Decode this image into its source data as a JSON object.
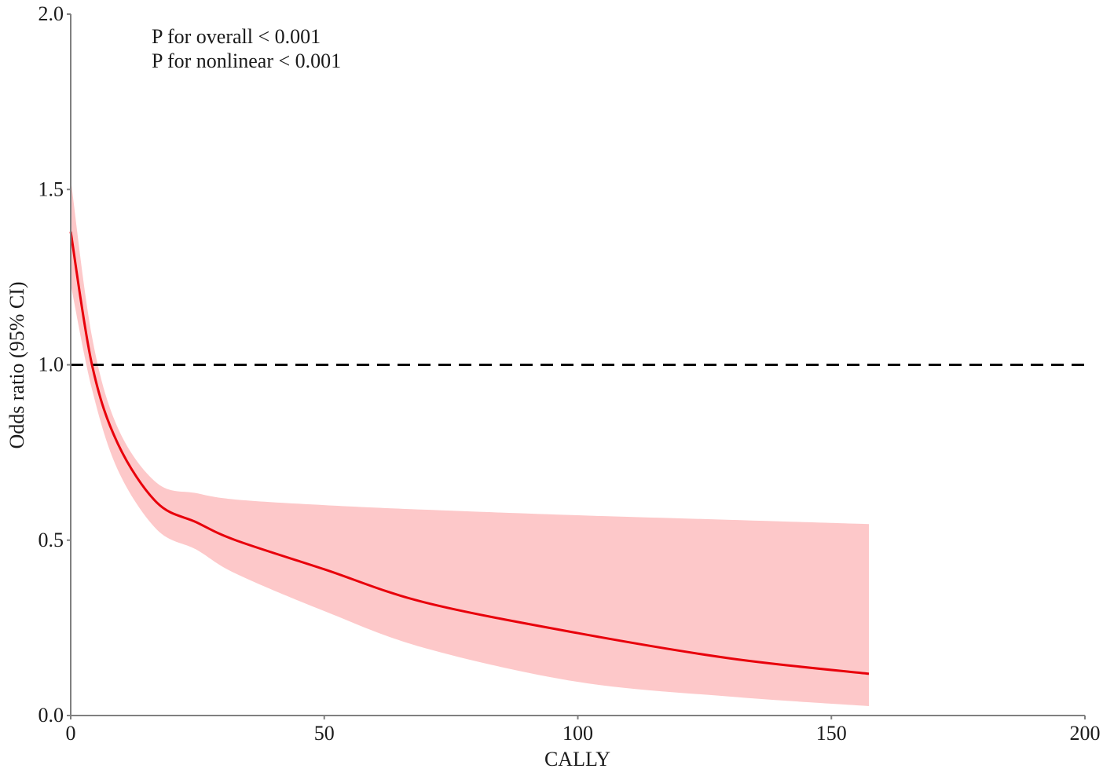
{
  "chart_data": {
    "type": "line",
    "title": "",
    "xlabel": "CALLY",
    "ylabel": "Odds ratio (95% CI)",
    "xlim": [
      0,
      200
    ],
    "ylim": [
      0,
      2.0
    ],
    "x_ticks": [
      0,
      50,
      100,
      150,
      200
    ],
    "y_ticks": [
      0.0,
      0.5,
      1.0,
      1.5,
      2.0
    ],
    "x_tick_labels": [
      "0",
      "50",
      "100",
      "150",
      "200"
    ],
    "y_tick_labels": [
      "0.0",
      "0.5",
      "1.0",
      "1.5",
      "2.0"
    ],
    "grid": false,
    "legend": null,
    "annotations": [
      "P for overall < 0.001",
      "P for nonlinear < 0.001"
    ],
    "reference_line": {
      "y": 1.0,
      "style": "dashed",
      "color": "#000000"
    },
    "series": [
      {
        "name": "Odds ratio",
        "color": "#e8000b",
        "x": [
          0,
          4.2,
          9.3,
          17,
          24.8,
          32.5,
          50,
          69.7,
          100,
          130,
          157.4
        ],
        "values": [
          1.38,
          1.0,
          0.775,
          0.607,
          0.551,
          0.5,
          0.417,
          0.323,
          0.235,
          0.163,
          0.119
        ]
      },
      {
        "name": "95% CI upper",
        "color": "#fdc8c9",
        "x": [
          0,
          4.2,
          9.3,
          17,
          24.8,
          32.5,
          50,
          69.7,
          100,
          130,
          157.4
        ],
        "values": [
          1.53,
          1.08,
          0.82,
          0.663,
          0.634,
          0.616,
          0.6,
          0.587,
          0.571,
          0.558,
          0.546
        ]
      },
      {
        "name": "95% CI lower",
        "color": "#fdc8c9",
        "x": [
          0,
          4.2,
          9.3,
          17,
          24.8,
          32.5,
          50,
          69.7,
          100,
          130,
          157.4
        ],
        "values": [
          1.23,
          0.93,
          0.7,
          0.53,
          0.473,
          0.405,
          0.298,
          0.193,
          0.096,
          0.054,
          0.027
        ]
      }
    ]
  },
  "annotations": {
    "line1": "P for overall < 0.001",
    "line2": "P for nonlinear < 0.001"
  },
  "axes": {
    "xlabel": "CALLY",
    "ylabel": "Odds ratio (95% CI)",
    "x_ticks": [
      "0",
      "50",
      "100",
      "150",
      "200"
    ],
    "y_ticks": [
      "0.0",
      "0.5",
      "1.0",
      "1.5",
      "2.0"
    ]
  },
  "colors": {
    "line": "#e8000b",
    "band": "#fdc8c9",
    "axis": "#808080",
    "reference": "#000000"
  }
}
